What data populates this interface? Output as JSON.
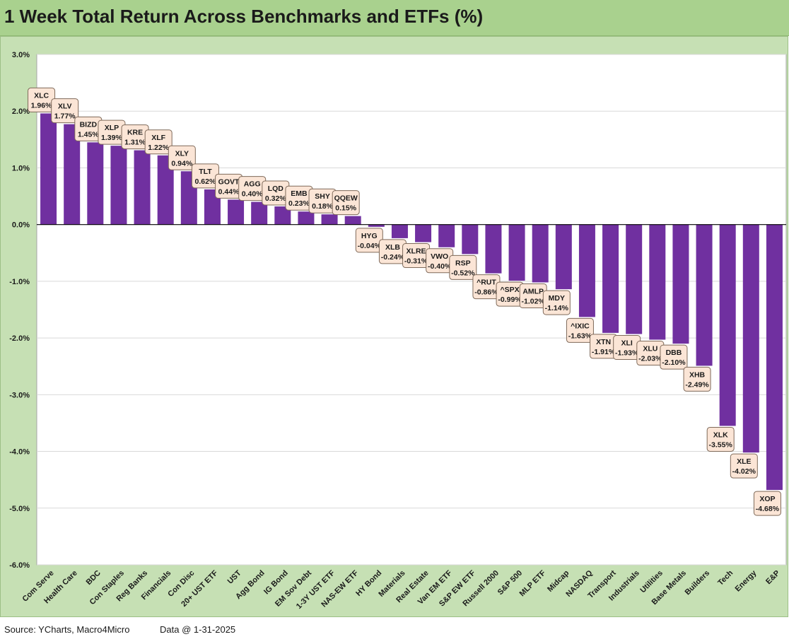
{
  "title": "1 Week Total Return Across Benchmarks and ETFs (%)",
  "footer": {
    "source": "Source: YCharts, Macro4Micro",
    "data_date": "Data @ 1-31-2025"
  },
  "colors": {
    "title_bar": "#a9d18e",
    "chart_background": "#c6e0b4",
    "plot_background": "#ffffff",
    "bar": "#7030a0",
    "label_fill": "#fbe5d6",
    "label_border": "#7f6a5a"
  },
  "chart_data": {
    "type": "bar",
    "title": "1 Week Total Return Across Benchmarks and ETFs (%)",
    "xlabel": "",
    "ylabel": "",
    "ylim": [
      -6.0,
      3.0
    ],
    "yticks": [
      "3.0%",
      "2.0%",
      "1.0%",
      "0.0%",
      "-1.0%",
      "-2.0%",
      "-3.0%",
      "-4.0%",
      "-5.0%",
      "-6.0%"
    ],
    "ytick_values": [
      3,
      2,
      1,
      0,
      -1,
      -2,
      -3,
      -4,
      -5,
      -6
    ],
    "grid": true,
    "categories": [
      "Com Serve",
      "Health Care",
      "BDC",
      "Con Staples",
      "Reg Banks",
      "Financials",
      "Con Disc",
      "20+ UST ETF",
      "UST",
      "Agg Bond",
      "IG Bond",
      "EM Sov Debt",
      "1-3Y UST ETF",
      "NAS-EW ETF",
      "HY Bond",
      "Materials",
      "Real Estate",
      "Van EM ETF",
      "S&P EW ETF",
      "Russell 2000",
      "S&P 500",
      "MLP ETF",
      "Midcap",
      "NASDAQ",
      "Transport",
      "Industrials",
      "Utilities",
      "Base Metals",
      "Builders",
      "Tech",
      "Energy",
      "E&P"
    ],
    "tickers": [
      "XLC",
      "XLV",
      "BIZD",
      "XLP",
      "KRE",
      "XLF",
      "XLY",
      "TLT",
      "GOVT",
      "AGG",
      "LQD",
      "EMB",
      "SHY",
      "QQEW",
      "HYG",
      "XLB",
      "XLRE",
      "VWO",
      "RSP",
      "^RUT",
      "^SPX",
      "AMLP",
      "MDY",
      "^IXIC",
      "XTN",
      "XLI",
      "XLU",
      "DBB",
      "XHB",
      "XLK",
      "XLE",
      "XOP"
    ],
    "value_labels": [
      "1.96%",
      "1.77%",
      "1.45%",
      "1.39%",
      "1.31%",
      "1.22%",
      "0.94%",
      "0.62%",
      "0.44%",
      "0.40%",
      "0.32%",
      "0.23%",
      "0.18%",
      "0.15%",
      "-0.04%",
      "-0.24%",
      "-0.31%",
      "-0.40%",
      "-0.52%",
      "-0.86%",
      "-0.99%",
      "-1.02%",
      "-1.14%",
      "-1.63%",
      "-1.91%",
      "-1.93%",
      "-2.03%",
      "-2.10%",
      "-2.49%",
      "-3.55%",
      "-4.02%",
      "-4.68%"
    ],
    "values": [
      1.96,
      1.77,
      1.45,
      1.39,
      1.31,
      1.22,
      0.94,
      0.62,
      0.44,
      0.4,
      0.32,
      0.23,
      0.18,
      0.15,
      -0.04,
      -0.24,
      -0.31,
      -0.4,
      -0.52,
      -0.86,
      -0.99,
      -1.02,
      -1.14,
      -1.63,
      -1.91,
      -1.93,
      -2.03,
      -2.1,
      -2.49,
      -3.55,
      -4.02,
      -4.68
    ]
  }
}
